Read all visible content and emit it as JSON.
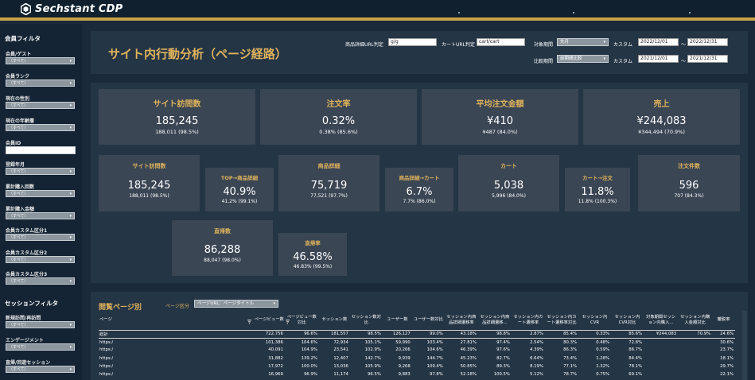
{
  "app": {
    "brand": "Sechstant CDP"
  },
  "sidebar": {
    "member_filter_title": "会員フィルタ",
    "member_filters": [
      {
        "label": "会員/ゲスト",
        "value": "（すべて）",
        "type": "select"
      },
      {
        "label": "会員ランク",
        "value": "（すべて）",
        "type": "select"
      },
      {
        "label": "現在の性別",
        "value": "（すべて）",
        "type": "select"
      },
      {
        "label": "現在の年齢層",
        "value": "（すべて）",
        "type": "select"
      },
      {
        "label": "会員ID",
        "value": "",
        "type": "input"
      },
      {
        "label": "登録年月",
        "value": "（すべて）",
        "type": "select"
      },
      {
        "label": "累計購入回数",
        "value": "（すべて）",
        "type": "select"
      },
      {
        "label": "累計購入金額",
        "value": "（すべて）",
        "type": "select"
      },
      {
        "label": "会員カスタム区分1",
        "value": "（すべて）",
        "type": "select"
      },
      {
        "label": "会員カスタム区分2",
        "value": "（すべて）",
        "type": "select"
      },
      {
        "label": "会員カスタム区分3",
        "value": "（すべて）",
        "type": "select"
      }
    ],
    "session_filter_title": "セッションフィルタ",
    "session_filters": [
      {
        "label": "新規訪問/再訪問",
        "value": "（すべて）"
      },
      {
        "label": "エンゲージメント",
        "value": "（すべて）"
      },
      {
        "label": "直帰/回遊セッション",
        "value": "（すべて）"
      }
    ]
  },
  "header": {
    "title": "サイト内行動分析（ページ経路）",
    "product_url_label": "商品詳細URL判定",
    "product_url_value": "g/g",
    "cart_url_label": "カートURL判定",
    "cart_url_value": "cart/cart",
    "period_label": "対象期間",
    "period_value": "先月",
    "compare_label": "比較期間",
    "compare_value": "前期間比較",
    "custom_label": "カスタム",
    "period_from": "2022/12/01",
    "period_to": "2022/12/31",
    "compare_from": "2021/12/01",
    "compare_to": "2021/12/31",
    "tilde": "～"
  },
  "kpi_top": [
    {
      "title": "サイト訪問数",
      "value": "185,245",
      "sub": "188,011 (98.5%)"
    },
    {
      "title": "注文率",
      "value": "0.32%",
      "sub": "0.38% (85.6%)"
    },
    {
      "title": "平均注文金額",
      "value": "¥410",
      "sub": "¥487 (84.0%)"
    },
    {
      "title": "売上",
      "value": "¥244,083",
      "sub": "¥344,494 (70.9%)"
    }
  ],
  "kpi_funnel": [
    {
      "title": "サイト訪問数",
      "value": "185,245",
      "sub": "188,011 (98.5%)"
    },
    {
      "title": "TOP→商品詳細",
      "value": "40.9%",
      "sub": "41.2% (99.1%)"
    },
    {
      "title": "商品詳細",
      "value": "75,719",
      "sub": "77,521 (97.7%)"
    },
    {
      "title": "商品詳細→カート",
      "value": "6.7%",
      "sub": "7.7% (86.0%)"
    },
    {
      "title": "カート",
      "value": "5,038",
      "sub": "5,996 (84.0%)"
    },
    {
      "title": "カート→注文",
      "value": "11.8%",
      "sub": "11.8% (100.3%)"
    },
    {
      "title": "注文件数",
      "value": "596",
      "sub": "707 (84.3%)"
    },
    {
      "title": "直帰数",
      "value": "86,288",
      "sub": "88,047 (98.0%)"
    },
    {
      "title": "直帰率",
      "value": "46.58%",
      "sub": "46.83% (99.5%)"
    }
  ],
  "table": {
    "title": "閲覧ページ別",
    "group_label": "ページ区分",
    "group_value": "ページURL：ページタイトル",
    "headers": [
      "ページ",
      "ページビュー数",
      "ページビュー数対比",
      "セッション数",
      "セッション数対比",
      "ユーザー数",
      "ユーザー数対比",
      "セッション内商品詳細遷移率",
      "セッション内商品詳細遷移...",
      "セッション内カート遷移率",
      "セッション内カート遷移率対比",
      "セッション内CVR",
      "セッション内CVR対比",
      "対象期間セッション内購入...",
      "セッション内購入金額対比",
      "離脱率"
    ],
    "rows": [
      [
        "総計",
        "722,756",
        "96.6%",
        "181,557",
        "98.5%",
        "126,127",
        "99.0%",
        "43.18%",
        "98.8%",
        "2.87%",
        "85.4%",
        "0.33%",
        "85.6%",
        "¥244,083",
        "70.9%",
        "24.6%"
      ],
      [
        "https:/",
        "101,386",
        "104.6%",
        "72,934",
        "105.1%",
        "59,990",
        "103.4%",
        "27.81%",
        "97.4%",
        "2.54%",
        "80.3%",
        "0.48%",
        "72.8%",
        "",
        "",
        "30.6%"
      ],
      [
        "https:/",
        "40,091",
        "104.9%",
        "23,541",
        "102.9%",
        "20,266",
        "104.6%",
        "46.39%",
        "97.6%",
        "4.39%",
        "86.3%",
        "0.59%",
        "86.7%",
        "",
        "",
        "23.7%"
      ],
      [
        "https:/",
        "31,882",
        "139.2%",
        "12,407",
        "142.7%",
        "9,939",
        "144.7%",
        "45.23%",
        "82.7%",
        "6.64%",
        "73.4%",
        "1.28%",
        "84.4%",
        "",
        "",
        "18.1%"
      ],
      [
        "https:/",
        "17,972",
        "100.0%",
        "13,036",
        "105.9%",
        "9,268",
        "109.4%",
        "50.85%",
        "89.3%",
        "8.19%",
        "77.1%",
        "1.32%",
        "78.1%",
        "",
        "",
        "29.7%"
      ],
      [
        "https:/",
        "16,969",
        "96.9%",
        "11,174",
        "96.5%",
        "9,883",
        "97.8%",
        "52.18%",
        "100.5%",
        "5.12%",
        "78.7%",
        "0.75%",
        "69.1%",
        "",
        "",
        "22.1%"
      ]
    ]
  }
}
